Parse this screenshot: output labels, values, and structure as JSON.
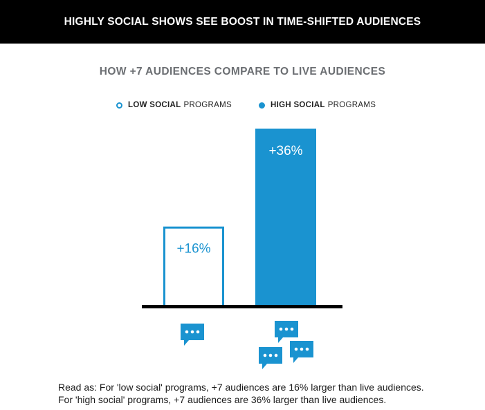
{
  "header": {
    "title": "HIGHLY SOCIAL SHOWS SEE BOOST IN TIME-SHIFTED AUDIENCES"
  },
  "chart_data": {
    "type": "bar",
    "title": "HOW +7 AUDIENCES COMPARE TO LIVE AUDIENCES",
    "categories": [
      "LOW SOCIAL PROGRAMS",
      "HIGH SOCIAL PROGRAMS"
    ],
    "values": [
      16,
      36
    ],
    "data_labels": [
      "+16%",
      "+36%"
    ],
    "unit": "%",
    "ylim": [
      0,
      40
    ],
    "grid": false,
    "legend_position": "top",
    "legend": [
      {
        "bold": "LOW SOCIAL",
        "rest": "PROGRAMS",
        "style": "outline",
        "color": "#1a93d0"
      },
      {
        "bold": "HIGH SOCIAL",
        "rest": "PROGRAMS",
        "style": "filled",
        "color": "#1a93d0"
      }
    ],
    "bar_color": "#1a93d0",
    "icons": [
      "chat-bubble-icon",
      "chat-bubbles-cluster-icon"
    ]
  },
  "caption": {
    "line1": "Read as: For 'low social' programs, +7 audiences are 16% larger than live audiences.",
    "line2": "For 'high social' programs, +7 audiences are 36% larger than live audiences."
  }
}
